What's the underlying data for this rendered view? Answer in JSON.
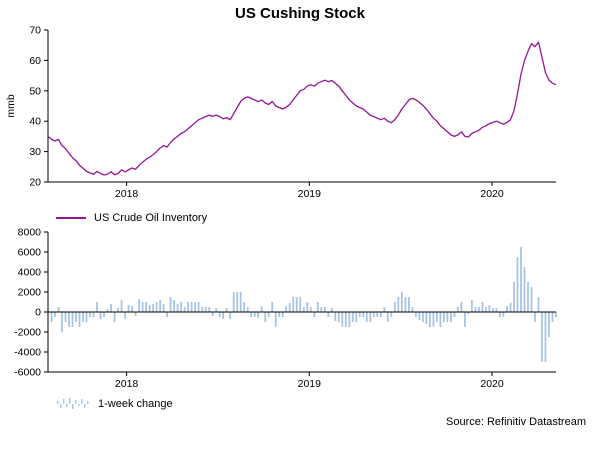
{
  "title": "US Cushing Stock",
  "source": "Source: Refinitiv Datastream",
  "colors": {
    "line": "#941694",
    "bar": "#a8c4e4",
    "axis": "#000000"
  },
  "chart_data": [
    {
      "type": "line",
      "title": "US Cushing Stock",
      "series_name": "US Crude Oil Inventory",
      "legend": "US Crude Oil Inventory",
      "ylabel": "mmb",
      "ylim": [
        20,
        70
      ],
      "yticks": [
        20,
        30,
        40,
        50,
        60,
        70
      ],
      "x_start_year": 2017.57,
      "x_end_year": 2020.35,
      "x_ticks": [
        2018,
        2019,
        2020
      ],
      "frequency": "weekly",
      "grid": false,
      "legend_position": "below-left",
      "line_color": "#941694",
      "values": [
        35.0,
        34.0,
        33.5,
        34.0,
        32.0,
        31.0,
        29.5,
        28.0,
        27.0,
        25.5,
        24.5,
        23.5,
        23.0,
        22.5,
        23.5,
        22.8,
        22.3,
        22.6,
        23.4,
        22.4,
        22.8,
        24.0,
        23.3,
        24.0,
        24.6,
        24.2,
        25.5,
        26.5,
        27.5,
        28.2,
        29.0,
        30.0,
        31.2,
        32.0,
        31.5,
        33.0,
        34.2,
        35.0,
        36.0,
        36.5,
        37.5,
        38.5,
        39.5,
        40.5,
        41.0,
        41.5,
        42.0,
        41.6,
        42.0,
        41.5,
        40.8,
        41.2,
        40.5,
        42.5,
        44.5,
        46.5,
        47.5,
        48.0,
        47.5,
        47.0,
        46.4,
        47.0,
        46.0,
        45.5,
        46.5,
        45.0,
        44.5,
        44.0,
        44.6,
        45.5,
        47.0,
        48.5,
        50.0,
        50.5,
        51.5,
        52.0,
        51.5,
        52.5,
        53.0,
        53.5,
        53.0,
        53.4,
        52.5,
        51.5,
        50.0,
        48.5,
        47.0,
        46.0,
        45.0,
        44.5,
        44.0,
        43.0,
        42.0,
        41.5,
        41.0,
        40.5,
        41.0,
        40.0,
        39.5,
        40.5,
        42.0,
        44.0,
        45.5,
        47.0,
        47.5,
        47.0,
        46.2,
        45.2,
        44.0,
        42.5,
        41.0,
        40.0,
        38.5,
        37.5,
        36.5,
        35.5,
        35.0,
        35.5,
        36.5,
        35.0,
        34.8,
        36.0,
        36.5,
        37.0,
        38.0,
        38.5,
        39.2,
        39.6,
        40.0,
        39.5,
        39.0,
        39.6,
        40.5,
        43.5,
        49.0,
        55.5,
        60.0,
        63.0,
        65.5,
        64.5,
        66.0,
        61.0,
        56.0,
        53.5,
        52.5,
        52.0
      ]
    },
    {
      "type": "bar",
      "series_name": "1-week change",
      "legend": "1-week change",
      "ylim": [
        -6000,
        8000
      ],
      "yticks": [
        -6000,
        -4000,
        -2000,
        0,
        2000,
        4000,
        6000,
        8000
      ],
      "x_ticks": [
        2018,
        2019,
        2020
      ],
      "grid": false,
      "legend_position": "below-left",
      "bar_color": "#a8c4e4",
      "derivation": "weekly difference of inventory series (mmb) multiplied by 1000",
      "derived_from_series": 0
    }
  ]
}
